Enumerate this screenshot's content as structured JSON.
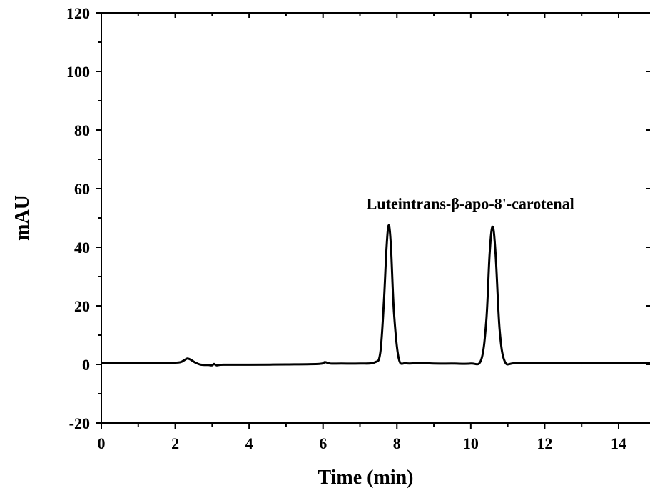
{
  "chart_data": {
    "type": "line",
    "xlabel": "Time (min)",
    "ylabel": "mAU",
    "xlim": [
      0,
      14.85
    ],
    "ylim": [
      -20,
      120
    ],
    "x_ticks": [
      0,
      2,
      4,
      6,
      8,
      10,
      12,
      14
    ],
    "y_ticks": [
      -20,
      0,
      20,
      40,
      60,
      80,
      100,
      120
    ],
    "grid": false,
    "series": [
      {
        "color": "#000000",
        "x": [
          0,
          0.5,
          1.0,
          1.5,
          2.0,
          2.15,
          2.25,
          2.33,
          2.42,
          2.55,
          2.7,
          2.9,
          3.0,
          3.05,
          3.12,
          3.3,
          4.0,
          5.0,
          5.9,
          6.05,
          6.2,
          6.5,
          7.0,
          7.4,
          7.55,
          7.65,
          7.72,
          7.78,
          7.84,
          7.92,
          8.05,
          8.25,
          8.7,
          9.0,
          9.5,
          10.0,
          10.28,
          10.42,
          10.51,
          10.59,
          10.67,
          10.78,
          10.92,
          11.2,
          12.0,
          13.0,
          14.0,
          14.85
        ],
        "y": [
          0.5,
          0.6,
          0.6,
          0.6,
          0.6,
          0.8,
          1.5,
          2.0,
          1.6,
          0.6,
          -0.1,
          -0.2,
          -0.3,
          0.2,
          -0.3,
          -0.1,
          -0.1,
          0.0,
          0.2,
          0.8,
          0.3,
          0.3,
          0.3,
          0.7,
          4.0,
          22.0,
          40.0,
          47.5,
          40.0,
          18.0,
          2.0,
          0.4,
          0.5,
          0.3,
          0.3,
          0.3,
          1.5,
          15.0,
          38.0,
          47.0,
          38.0,
          12.0,
          1.0,
          0.4,
          0.4,
          0.4,
          0.4,
          0.4
        ]
      }
    ],
    "annotations": [
      {
        "text": "Lutein",
        "x": 7.78,
        "y": 55
      },
      {
        "text": "trans-β-apo-8'-carotenal",
        "x": 10.59,
        "y": 55
      }
    ]
  }
}
